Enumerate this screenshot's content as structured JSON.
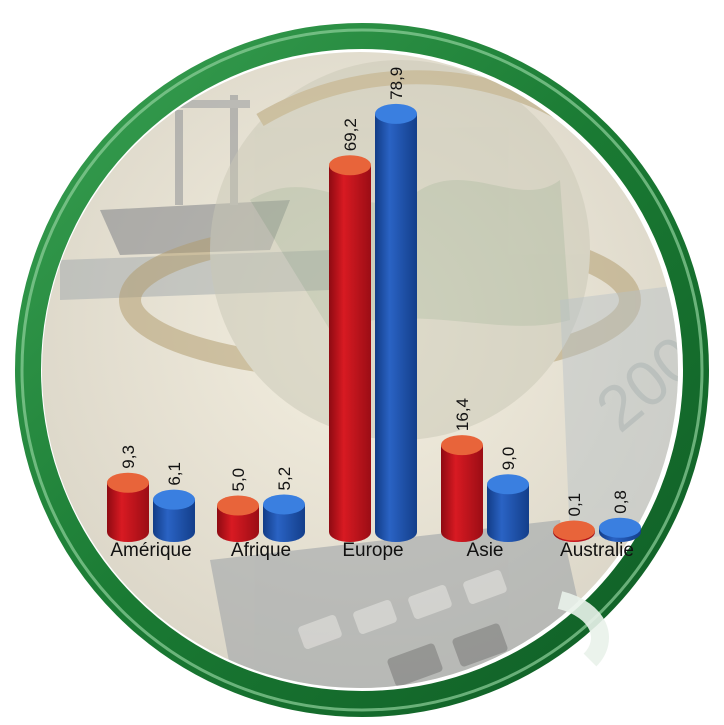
{
  "chart_data": {
    "type": "bar",
    "categories": [
      "Amérique",
      "Afrique",
      "Europe",
      "Asie",
      "Australie"
    ],
    "series": [
      {
        "values": [
          9.3,
          5.0,
          69.2,
          16.4,
          0.1
        ],
        "value_labels": [
          "9,3",
          "5,0",
          "69,2",
          "16,4",
          "0,1"
        ],
        "color": "#c8121c"
      },
      {
        "values": [
          6.1,
          5.2,
          78.9,
          9.0,
          0.8
        ],
        "value_labels": [
          "6,1",
          "5,2",
          "78,9",
          "9,0",
          "0,8"
        ],
        "color": "#1f56b4"
      }
    ],
    "ylim": [
      0,
      80
    ],
    "grid": false,
    "bar_style": "3d-cylinder",
    "value_label_orientation": "vertical"
  },
  "colors": {
    "ring_green": "#1f8a3a",
    "ring_highlight": "#7cc98a",
    "cylinder_top_red": "#e8643a",
    "cylinder_top_blue": "#3a7fe0"
  },
  "background": {
    "icons": [
      "globe-icon",
      "ship-icon",
      "calculator-icon",
      "banknote-icon"
    ],
    "banknote_text": "200"
  }
}
